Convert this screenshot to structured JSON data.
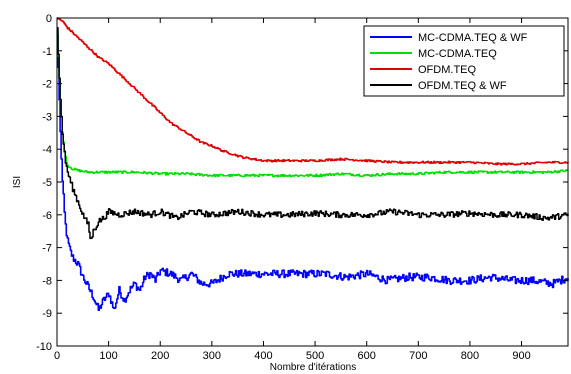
{
  "chart_data": {
    "type": "line",
    "xlabel": "Nombre d'itérations",
    "ylabel": "ISI",
    "xlim": [
      0,
      990
    ],
    "ylim": [
      -10,
      0
    ],
    "xticks": [
      0,
      100,
      200,
      300,
      400,
      500,
      600,
      700,
      800,
      900
    ],
    "yticks": [
      0,
      -1,
      -2,
      -3,
      -4,
      -5,
      -6,
      -7,
      -8,
      -9,
      -10
    ],
    "grid": false,
    "legend_position": "top-right",
    "series": [
      {
        "name": "MC-CDMA.TEQ & WF",
        "color": "#0000ff",
        "points": [
          [
            0,
            -0.5
          ],
          [
            3,
            -2.0
          ],
          [
            6,
            -3.5
          ],
          [
            10,
            -5.0
          ],
          [
            15,
            -6.2
          ],
          [
            20,
            -6.8
          ],
          [
            25,
            -7.1
          ],
          [
            30,
            -7.3
          ],
          [
            40,
            -7.5
          ],
          [
            50,
            -7.9
          ],
          [
            60,
            -8.2
          ],
          [
            70,
            -8.5
          ],
          [
            80,
            -8.9
          ],
          [
            90,
            -8.6
          ],
          [
            100,
            -8.4
          ],
          [
            110,
            -8.9
          ],
          [
            120,
            -8.3
          ],
          [
            130,
            -8.6
          ],
          [
            140,
            -8.3
          ],
          [
            150,
            -8.1
          ],
          [
            160,
            -8.3
          ],
          [
            170,
            -7.9
          ],
          [
            180,
            -7.8
          ],
          [
            190,
            -8.0
          ],
          [
            200,
            -7.7
          ],
          [
            220,
            -7.8
          ],
          [
            240,
            -8.0
          ],
          [
            260,
            -7.8
          ],
          [
            280,
            -8.1
          ],
          [
            300,
            -8.1
          ],
          [
            330,
            -7.8
          ],
          [
            360,
            -7.8
          ],
          [
            400,
            -7.8
          ],
          [
            440,
            -7.8
          ],
          [
            480,
            -7.8
          ],
          [
            520,
            -7.8
          ],
          [
            560,
            -7.9
          ],
          [
            600,
            -7.8
          ],
          [
            640,
            -8.0
          ],
          [
            680,
            -7.9
          ],
          [
            720,
            -7.9
          ],
          [
            760,
            -8.0
          ],
          [
            800,
            -8.0
          ],
          [
            840,
            -7.9
          ],
          [
            880,
            -8.0
          ],
          [
            920,
            -8.0
          ],
          [
            960,
            -8.1
          ],
          [
            990,
            -7.9
          ]
        ]
      },
      {
        "name": "MC-CDMA.TEQ",
        "color": "#00dd00",
        "points": [
          [
            0,
            -0.5
          ],
          [
            3,
            -1.5
          ],
          [
            6,
            -2.5
          ],
          [
            10,
            -3.5
          ],
          [
            15,
            -4.2
          ],
          [
            20,
            -4.5
          ],
          [
            30,
            -4.6
          ],
          [
            40,
            -4.65
          ],
          [
            60,
            -4.7
          ],
          [
            80,
            -4.7
          ],
          [
            100,
            -4.7
          ],
          [
            150,
            -4.7
          ],
          [
            200,
            -4.75
          ],
          [
            250,
            -4.75
          ],
          [
            300,
            -4.8
          ],
          [
            350,
            -4.8
          ],
          [
            400,
            -4.8
          ],
          [
            450,
            -4.8
          ],
          [
            500,
            -4.8
          ],
          [
            550,
            -4.75
          ],
          [
            600,
            -4.8
          ],
          [
            650,
            -4.75
          ],
          [
            700,
            -4.75
          ],
          [
            750,
            -4.7
          ],
          [
            800,
            -4.7
          ],
          [
            850,
            -4.7
          ],
          [
            900,
            -4.7
          ],
          [
            950,
            -4.7
          ],
          [
            990,
            -4.65
          ]
        ]
      },
      {
        "name": "OFDM.TEQ",
        "color": "#dd0000",
        "points": [
          [
            0,
            0.0
          ],
          [
            10,
            -0.1
          ],
          [
            20,
            -0.3
          ],
          [
            40,
            -0.6
          ],
          [
            60,
            -0.9
          ],
          [
            80,
            -1.2
          ],
          [
            100,
            -1.4
          ],
          [
            120,
            -1.7
          ],
          [
            140,
            -2.0
          ],
          [
            160,
            -2.3
          ],
          [
            180,
            -2.6
          ],
          [
            200,
            -2.9
          ],
          [
            220,
            -3.2
          ],
          [
            240,
            -3.4
          ],
          [
            260,
            -3.6
          ],
          [
            280,
            -3.8
          ],
          [
            300,
            -3.9
          ],
          [
            320,
            -4.05
          ],
          [
            340,
            -4.15
          ],
          [
            360,
            -4.25
          ],
          [
            380,
            -4.3
          ],
          [
            400,
            -4.35
          ],
          [
            450,
            -4.35
          ],
          [
            500,
            -4.35
          ],
          [
            550,
            -4.3
          ],
          [
            600,
            -4.35
          ],
          [
            650,
            -4.4
          ],
          [
            700,
            -4.4
          ],
          [
            750,
            -4.4
          ],
          [
            800,
            -4.4
          ],
          [
            850,
            -4.45
          ],
          [
            900,
            -4.45
          ],
          [
            950,
            -4.4
          ],
          [
            990,
            -4.4
          ]
        ]
      },
      {
        "name": "OFDM.TEQ & WF",
        "color": "#000000",
        "points": [
          [
            0,
            -0.3
          ],
          [
            3,
            -1.5
          ],
          [
            6,
            -2.5
          ],
          [
            10,
            -3.5
          ],
          [
            15,
            -4.3
          ],
          [
            20,
            -4.7
          ],
          [
            30,
            -5.2
          ],
          [
            40,
            -5.6
          ],
          [
            50,
            -6.0
          ],
          [
            60,
            -6.3
          ],
          [
            65,
            -6.8
          ],
          [
            70,
            -6.5
          ],
          [
            80,
            -6.2
          ],
          [
            90,
            -6.1
          ],
          [
            100,
            -5.9
          ],
          [
            120,
            -6.0
          ],
          [
            150,
            -5.9
          ],
          [
            180,
            -6.0
          ],
          [
            200,
            -5.9
          ],
          [
            230,
            -6.1
          ],
          [
            260,
            -5.9
          ],
          [
            300,
            -6.0
          ],
          [
            350,
            -5.9
          ],
          [
            400,
            -6.0
          ],
          [
            450,
            -6.0
          ],
          [
            500,
            -5.95
          ],
          [
            550,
            -6.0
          ],
          [
            600,
            -6.0
          ],
          [
            650,
            -5.9
          ],
          [
            700,
            -6.0
          ],
          [
            750,
            -6.0
          ],
          [
            800,
            -5.95
          ],
          [
            850,
            -6.0
          ],
          [
            900,
            -6.0
          ],
          [
            950,
            -6.1
          ],
          [
            990,
            -6.0
          ]
        ]
      }
    ]
  }
}
